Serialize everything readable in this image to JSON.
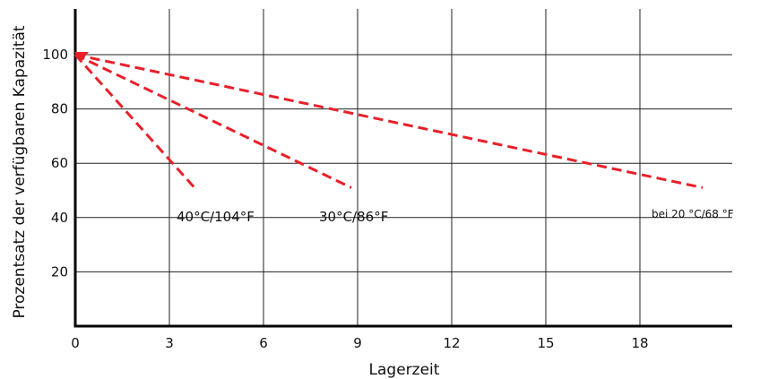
{
  "chart_data": {
    "type": "line",
    "title": "",
    "xlabel": "Lagerzeit",
    "ylabel": "Prozentsatz der verfügbaren Kapazität",
    "xlim": [
      0,
      20.5
    ],
    "ylim": [
      0,
      120
    ],
    "x_ticks": [
      0,
      3,
      6,
      9,
      12,
      15,
      18
    ],
    "y_ticks": [
      20,
      40,
      60,
      80,
      100
    ],
    "grid": true,
    "series": [
      {
        "name": "40°C/104°F",
        "x": [
          0,
          3.8
        ],
        "y": [
          100,
          51
        ],
        "color": "#e8202a"
      },
      {
        "name": "30°C/86°F",
        "x": [
          0,
          8.8
        ],
        "y": [
          100,
          51
        ],
        "color": "#e8202a"
      },
      {
        "name": "bei 20 °C/68 °F",
        "x": [
          0,
          20
        ],
        "y": [
          100,
          51
        ],
        "color": "#e8202a"
      }
    ],
    "marker": {
      "x": 0.2,
      "y": 100,
      "color": "#e8202a"
    }
  }
}
